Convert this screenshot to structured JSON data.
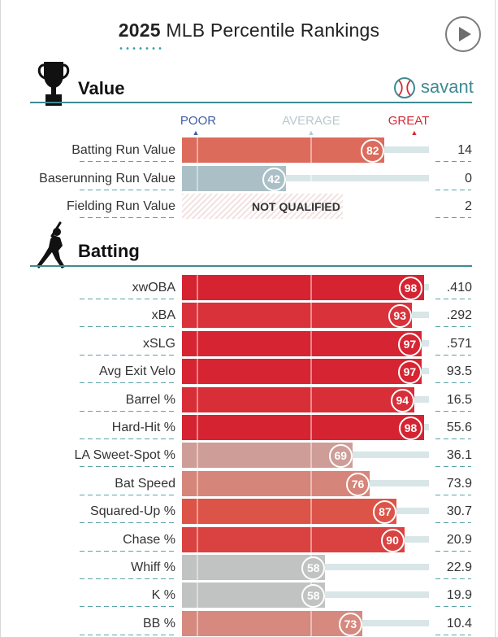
{
  "header": {
    "year": "2025",
    "title": "MLB Percentile Rankings"
  },
  "sections": {
    "value": {
      "title": "Value",
      "icon": "trophy-icon"
    },
    "batting": {
      "title": "Batting",
      "icon": "batter-icon"
    }
  },
  "brand": {
    "label": "savant",
    "icon": "baseball-icon"
  },
  "scale": {
    "poor": "POOR",
    "average": "AVERAGE",
    "great": "GREAT"
  },
  "colors": {
    "accent": "#3f8a91",
    "poor": "#3f5fa8",
    "average": "#b7c9cc",
    "great": "#d42a34"
  },
  "chart_data": {
    "type": "bar",
    "xlim": [
      0,
      100
    ],
    "value_rows": [
      {
        "label": "Batting Run Value",
        "percentile": 82,
        "value": "14",
        "color": "#dc6b5c"
      },
      {
        "label": "Baserunning Run Value",
        "percentile": 42,
        "value": "0",
        "color": "#aac0c6"
      },
      {
        "label": "Fielding Run Value",
        "percentile": null,
        "value": "2",
        "status": "NOT QUALIFIED"
      }
    ],
    "batting_rows": [
      {
        "label": "xwOBA",
        "percentile": 98,
        "value": ".410",
        "color": "#d62331"
      },
      {
        "label": "xBA",
        "percentile": 93,
        "value": ".292",
        "color": "#d9323a"
      },
      {
        "label": "xSLG",
        "percentile": 97,
        "value": ".571",
        "color": "#d62432"
      },
      {
        "label": "Avg Exit Velo",
        "percentile": 97,
        "value": "93.5",
        "color": "#d62432"
      },
      {
        "label": "Barrel %",
        "percentile": 94,
        "value": "16.5",
        "color": "#d82e38"
      },
      {
        "label": "Hard-Hit %",
        "percentile": 98,
        "value": "55.6",
        "color": "#d62331"
      },
      {
        "label": "LA Sweet-Spot %",
        "percentile": 69,
        "value": "36.1",
        "color": "#cf9d97"
      },
      {
        "label": "Bat Speed",
        "percentile": 76,
        "value": "73.9",
        "color": "#d6857a"
      },
      {
        "label": "Squared-Up %",
        "percentile": 87,
        "value": "30.7",
        "color": "#dc5448"
      },
      {
        "label": "Chase %",
        "percentile": 90,
        "value": "20.9",
        "color": "#d94240"
      },
      {
        "label": "Whiff %",
        "percentile": 58,
        "value": "22.9",
        "color": "#c1c2c2"
      },
      {
        "label": "K %",
        "percentile": 58,
        "value": "19.9",
        "color": "#c1c2c2"
      },
      {
        "label": "BB %",
        "percentile": 73,
        "value": "10.4",
        "color": "#d6897f"
      }
    ]
  }
}
